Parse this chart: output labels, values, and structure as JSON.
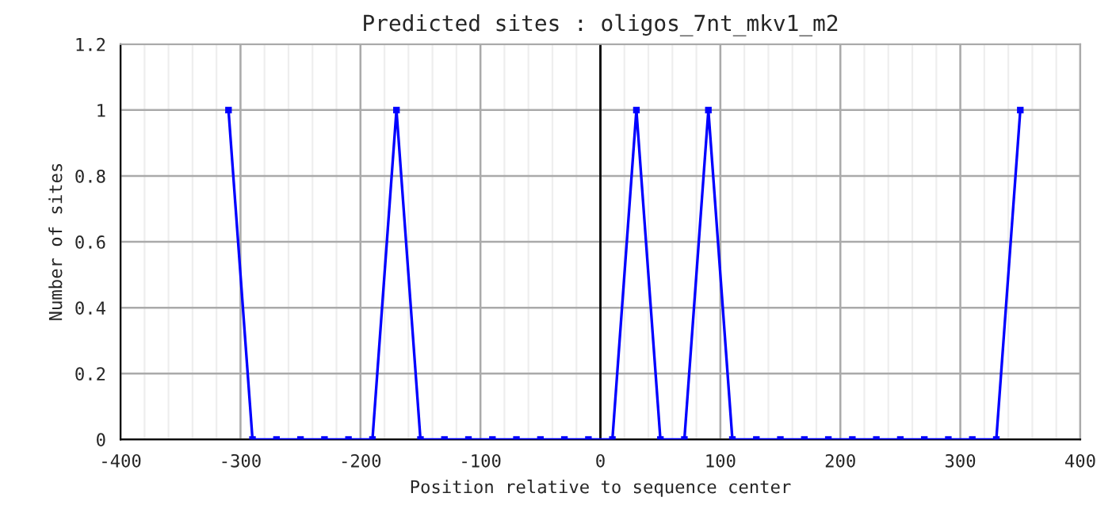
{
  "chart_data": {
    "type": "line",
    "title": "Predicted sites : oligos_7nt_mkv1_m2",
    "xlabel": "Position relative to sequence center",
    "ylabel": "Number of sites",
    "x": [
      -310,
      -290,
      -270,
      -250,
      -230,
      -210,
      -190,
      -170,
      -150,
      -130,
      -110,
      -90,
      -70,
      -50,
      -30,
      -10,
      10,
      30,
      50,
      70,
      90,
      110,
      130,
      150,
      170,
      190,
      210,
      230,
      250,
      270,
      290,
      310,
      330,
      350
    ],
    "series": [
      {
        "color": "#0000ff",
        "values": [
          1,
          0,
          0,
          0,
          0,
          0,
          0,
          1,
          0,
          0,
          0,
          0,
          0,
          0,
          0,
          0,
          0,
          1,
          0,
          0,
          1,
          0,
          0,
          0,
          0,
          0,
          0,
          0,
          0,
          0,
          0,
          0,
          0,
          1
        ]
      }
    ],
    "xlim": [
      -400,
      400
    ],
    "xticks": [
      -400,
      -300,
      -200,
      -100,
      0,
      100,
      200,
      300,
      400
    ],
    "ylim": [
      0,
      1.2
    ],
    "yticks": [
      0,
      0.2,
      0.4,
      0.6,
      0.8,
      1,
      1.2
    ],
    "ref_lines": [
      {
        "axis": "x",
        "value": 0,
        "color": "#000000"
      }
    ],
    "grid": true,
    "marker": "square",
    "line_style": "solid",
    "legend": false
  }
}
